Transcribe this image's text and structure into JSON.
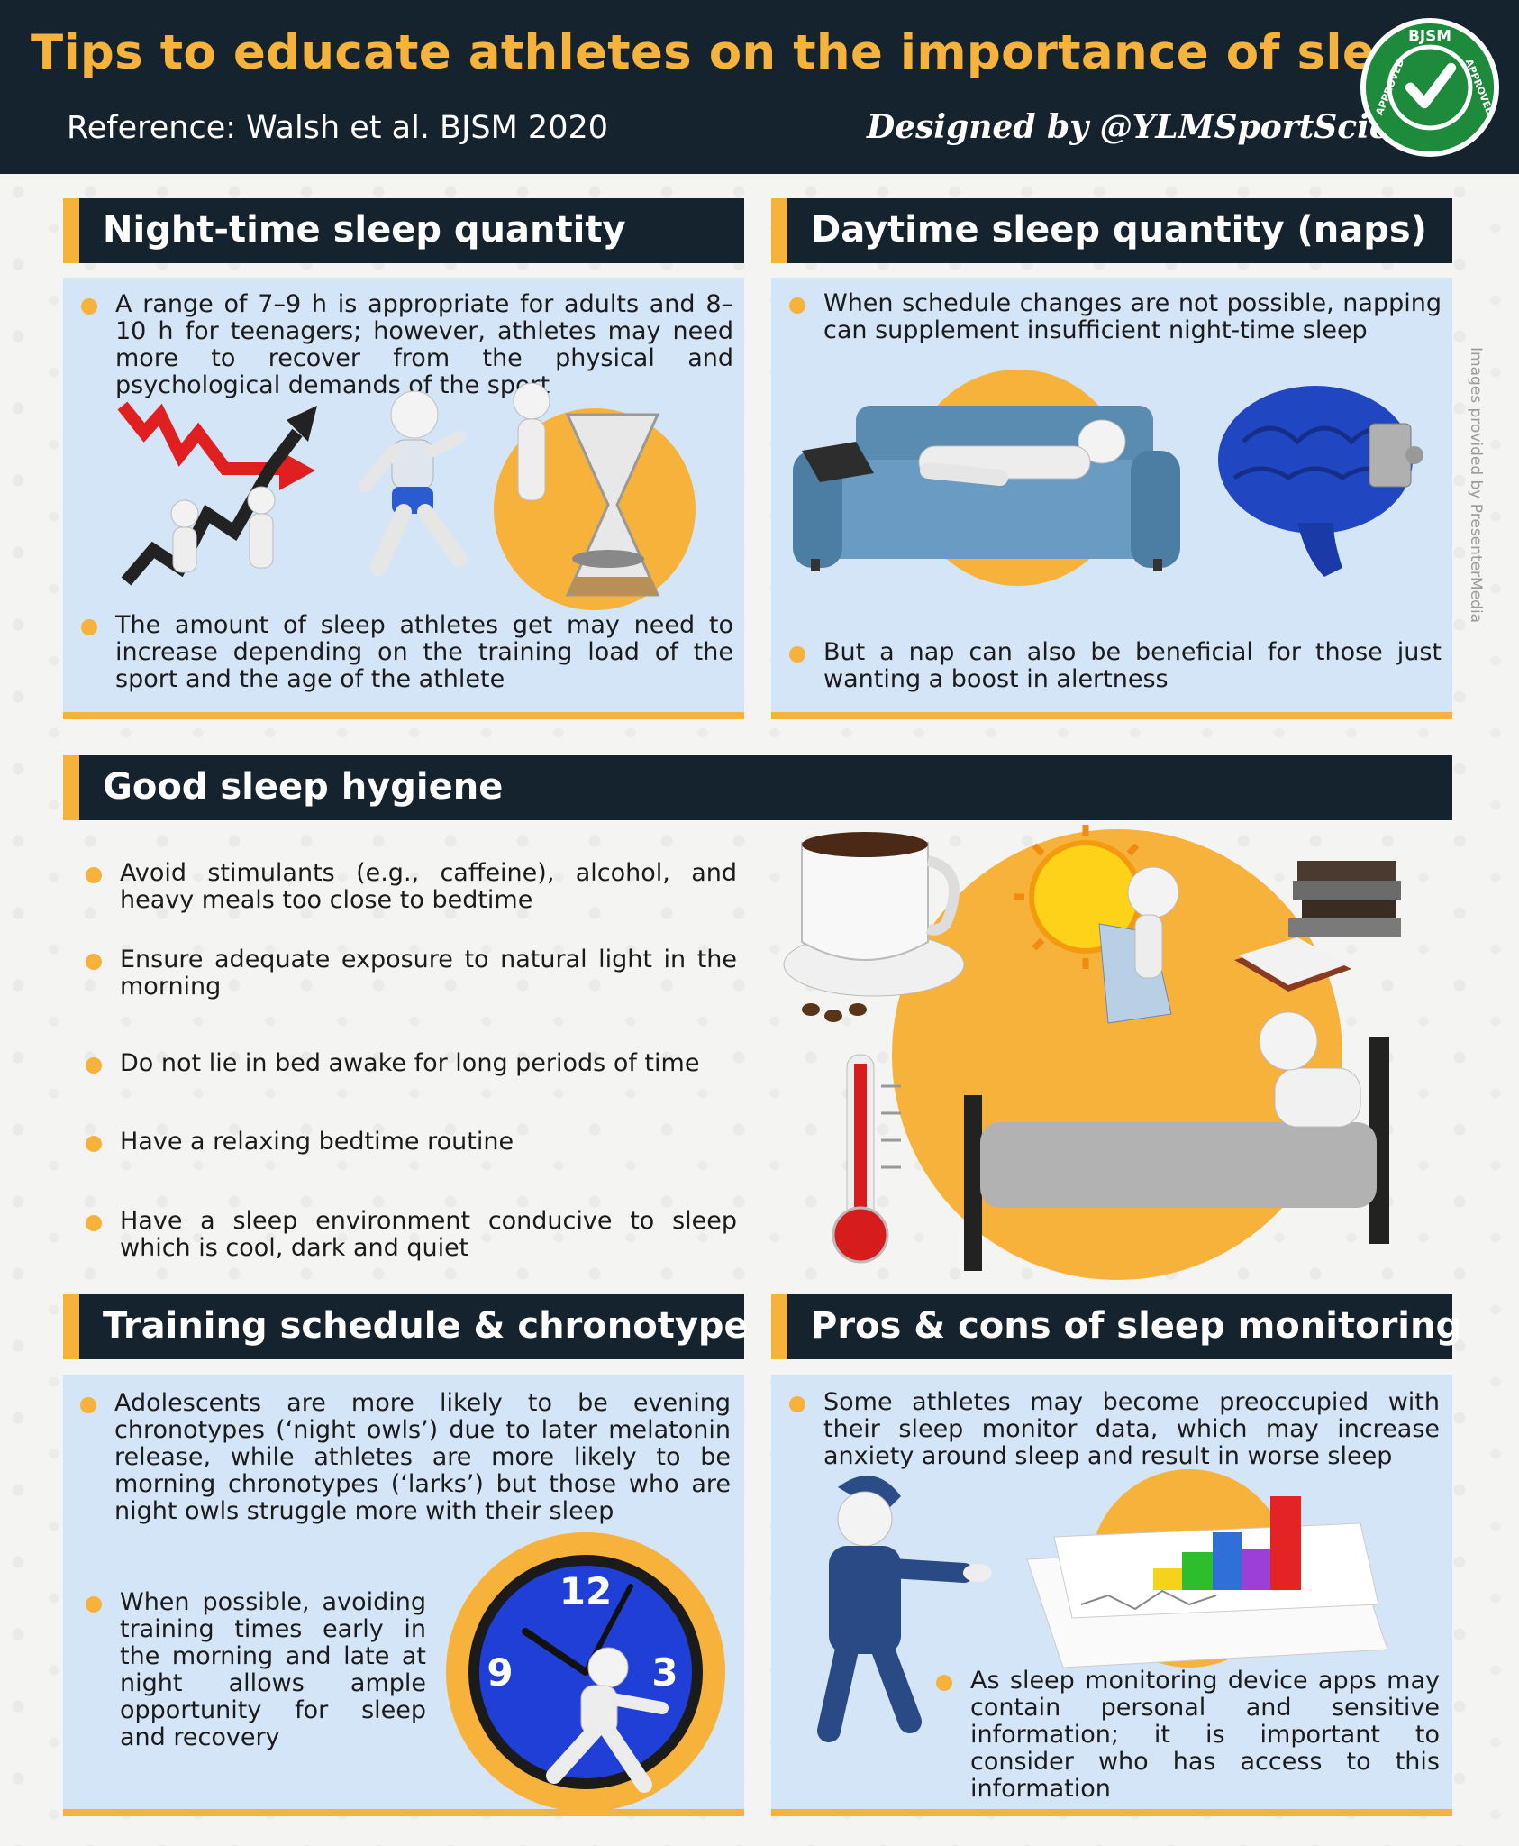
{
  "header": {
    "title": "Tips to educate athletes on the importance of sleep",
    "reference": "Reference: Walsh et al. BJSM 2020",
    "designed_by": "Designed by @YLMSportScience",
    "badge": {
      "top": "BJSM",
      "left": "APPROVED",
      "right": "APPROVED",
      "icon": "checkmark-icon"
    }
  },
  "side_note": "Images provided by PresenterMedia",
  "sections": {
    "night": {
      "title": "Night-time sleep quantity",
      "bullets": [
        "A range of 7–9 h is appropriate for adults and 8–10 h for teenagers; however, athletes may need more to recover from the physical and psychological demands of the sport",
        "The amount of sleep athletes get may need to increase depending on the training load of the sport and the age of the athlete"
      ]
    },
    "day": {
      "title": "Daytime sleep quantity (naps)",
      "bullets": [
        "When schedule changes are not possible, napping can supplement insufficient night-time sleep",
        "But a nap can also be beneficial for those just wanting a boost in alertness"
      ]
    },
    "hygiene": {
      "title": "Good sleep hygiene",
      "bullets": [
        "Avoid stimulants (e.g., caffeine), alcohol, and heavy meals too close to bedtime",
        "Ensure adequate exposure to natural light in the morning",
        "Do not lie in bed awake for long periods of time",
        "Have a relaxing bedtime routine",
        "Have a sleep environment conducive to sleep which is cool, dark and quiet"
      ]
    },
    "training": {
      "title": "Training schedule & chronotype",
      "bullets": [
        "Adolescents are more likely to be evening chronotypes (‘night owls’) due to later melatonin release, while athletes are more likely to be morning chronotypes (‘larks’) but those who are night owls struggle more with their sleep",
        "When possible, avoiding training times early in the morning and late at night allows ample opportunity for sleep and recovery"
      ],
      "clock": {
        "n12": "12",
        "n9": "9",
        "n3": "3"
      }
    },
    "monitoring": {
      "title": "Pros & cons of sleep monitoring",
      "bullets": [
        "Some athletes may become preoccupied with their sleep monitor data, which may increase anxiety around sleep and result in worse sleep",
        "As sleep monitoring device apps may contain personal and sensitive information; it is important to consider who has access to this information"
      ]
    }
  },
  "colors": {
    "navy": "#15232f",
    "accent": "#f7b23b",
    "panel": "#d4e5f8"
  }
}
